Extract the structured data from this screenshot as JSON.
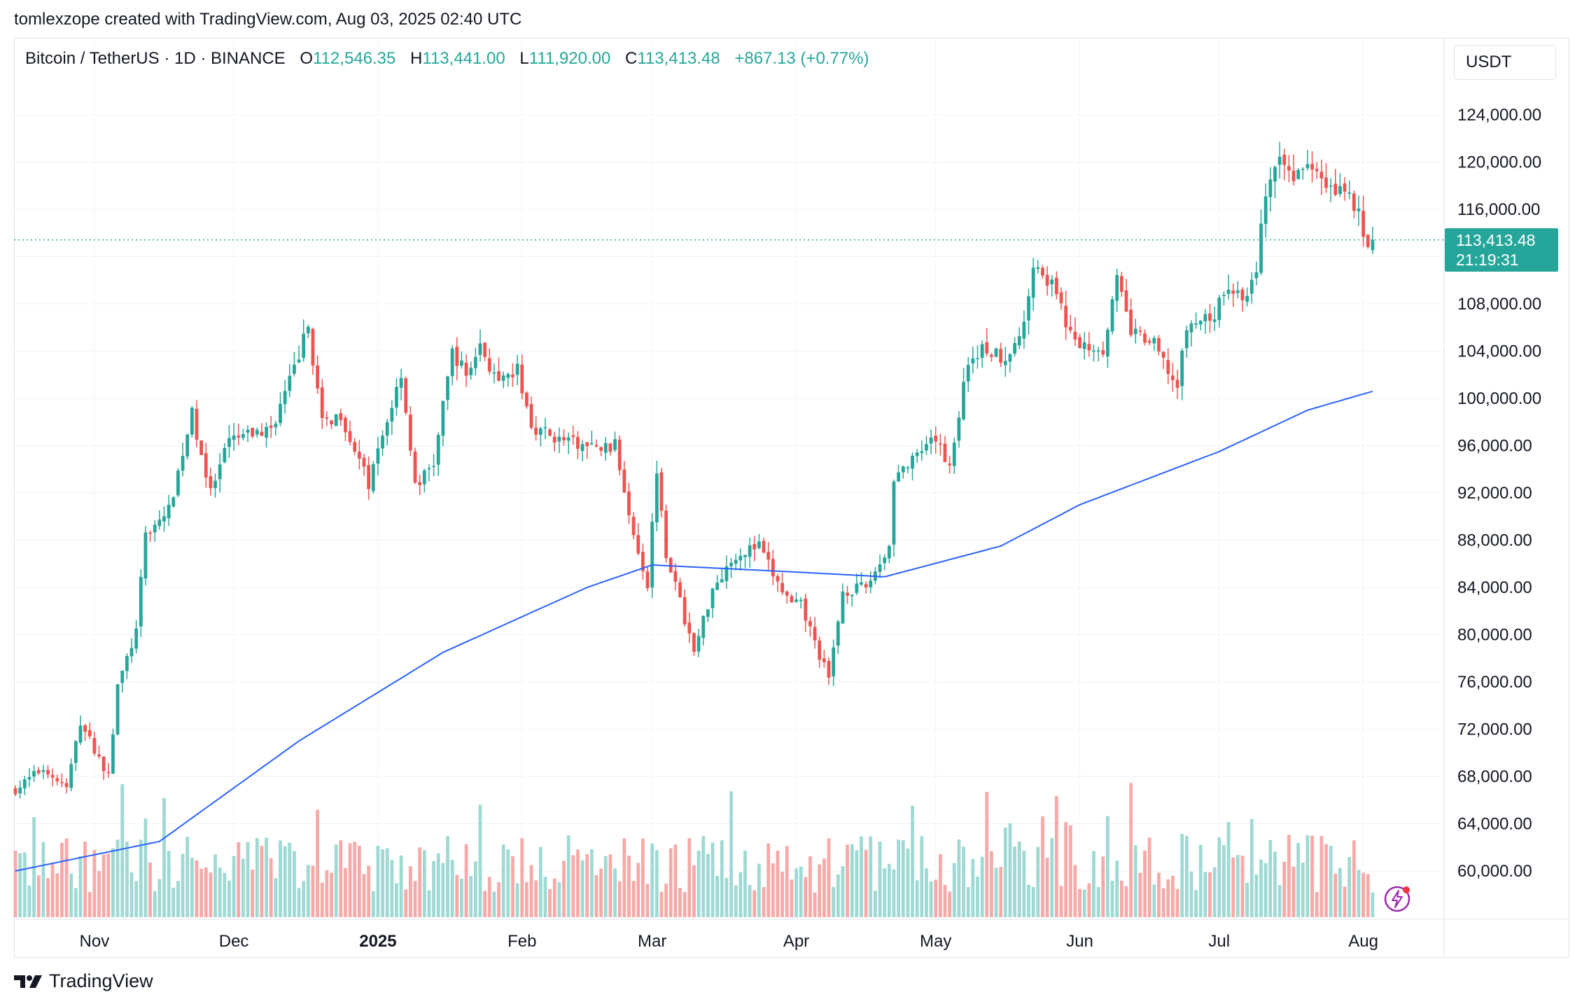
{
  "caption": "tomlexzope created with TradingView.com, Aug 03, 2025 02:40 UTC",
  "legend": {
    "symbol": "Bitcoin / TetherUS · 1D · BINANCE",
    "o_key": "O",
    "o_val": "112,546.35",
    "h_key": "H",
    "h_val": "113,441.00",
    "l_key": "L",
    "l_val": "111,920.00",
    "c_key": "C",
    "c_val": "113,413.48",
    "change": "+867.13 (+0.77%)"
  },
  "currency": "USDT",
  "last_price": {
    "price": "113,413.48",
    "countdown": "21:19:31"
  },
  "brand": "TradingView",
  "colors": {
    "up": "#26a69a",
    "down": "#ef5350",
    "ma": "#2962ff",
    "vol_up": "#9fd9d3",
    "vol_down": "#f7a9a7"
  },
  "icons": {
    "flash": "flash-icon",
    "logo": "tradingview-logo-icon"
  },
  "chart_data": {
    "type": "candlestick",
    "price_axis": {
      "labels": [
        "124,000.00",
        "120,000.00",
        "116,000.00",
        "108,000.00",
        "104,000.00",
        "100,000.00",
        "96,000.00",
        "92,000.00",
        "88,000.00",
        "84,000.00",
        "80,000.00",
        "76,000.00",
        "72,000.00",
        "68,000.00",
        "64,000.00",
        "60,000.00"
      ],
      "values": [
        124000,
        120000,
        116000,
        108000,
        104000,
        100000,
        96000,
        92000,
        88000,
        84000,
        80000,
        76000,
        72000,
        68000,
        64000,
        60000
      ],
      "range": [
        57000,
        126000
      ]
    },
    "time_axis": {
      "labels": [
        "Nov",
        "Dec",
        "2025",
        "Feb",
        "Mar",
        "Apr",
        "May",
        "Jun",
        "Jul",
        "Aug"
      ],
      "bold": [
        false,
        false,
        true,
        false,
        false,
        false,
        false,
        false,
        false,
        false
      ]
    },
    "series": [
      {
        "name": "BTCUSDT Daily",
        "anchors": [
          [
            "2024-10-15",
            66900
          ],
          [
            "2024-10-21",
            68700
          ],
          [
            "2024-10-26",
            67000
          ],
          [
            "2024-10-29",
            72600
          ],
          [
            "2024-11-04",
            68000
          ],
          [
            "2024-11-06",
            75600
          ],
          [
            "2024-11-10",
            80300
          ],
          [
            "2024-11-12",
            88500
          ],
          [
            "2024-11-17",
            90500
          ],
          [
            "2024-11-22",
            98700
          ],
          [
            "2024-11-26",
            91900
          ],
          [
            "2024-11-30",
            96400
          ],
          [
            "2024-12-05",
            97000
          ],
          [
            "2024-12-09",
            97400
          ],
          [
            "2024-12-13",
            101400
          ],
          [
            "2024-12-17",
            106100
          ],
          [
            "2024-12-20",
            97800
          ],
          [
            "2024-12-24",
            98700
          ],
          [
            "2024-12-30",
            92700
          ],
          [
            "2025-01-06",
            102200
          ],
          [
            "2025-01-09",
            92500
          ],
          [
            "2025-01-13",
            94500
          ],
          [
            "2025-01-17",
            104000
          ],
          [
            "2025-01-20",
            102000
          ],
          [
            "2025-01-23",
            104500
          ],
          [
            "2025-01-27",
            101000
          ],
          [
            "2025-01-31",
            102400
          ],
          [
            "2025-02-03",
            97700
          ],
          [
            "2025-02-09",
            96500
          ],
          [
            "2025-02-17",
            95700
          ],
          [
            "2025-02-21",
            96000
          ],
          [
            "2025-02-25",
            88700
          ],
          [
            "2025-02-28",
            84300
          ],
          [
            "2025-03-02",
            94200
          ],
          [
            "2025-03-04",
            87000
          ],
          [
            "2025-03-10",
            78500
          ],
          [
            "2025-03-14",
            84000
          ],
          [
            "2025-03-19",
            86800
          ],
          [
            "2025-03-24",
            87500
          ],
          [
            "2025-03-28",
            84300
          ],
          [
            "2025-03-31",
            82500
          ],
          [
            "2025-04-02",
            82500
          ],
          [
            "2025-04-06",
            78300
          ],
          [
            "2025-04-08",
            76200
          ],
          [
            "2025-04-11",
            83700
          ],
          [
            "2025-04-16",
            84000
          ],
          [
            "2025-04-21",
            87500
          ],
          [
            "2025-04-22",
            93400
          ],
          [
            "2025-04-26",
            94600
          ],
          [
            "2025-05-01",
            96500
          ],
          [
            "2025-05-04",
            94300
          ],
          [
            "2025-05-08",
            103200
          ],
          [
            "2025-05-11",
            104200
          ],
          [
            "2025-05-16",
            103500
          ],
          [
            "2025-05-20",
            106000
          ],
          [
            "2025-05-22",
            111700
          ],
          [
            "2025-05-26",
            109500
          ],
          [
            "2025-05-31",
            104600
          ],
          [
            "2025-06-06",
            104300
          ],
          [
            "2025-06-09",
            110000
          ],
          [
            "2025-06-12",
            105700
          ],
          [
            "2025-06-17",
            104500
          ],
          [
            "2025-06-22",
            100900
          ],
          [
            "2025-06-24",
            106000
          ],
          [
            "2025-06-30",
            107100
          ],
          [
            "2025-07-03",
            109600
          ],
          [
            "2025-07-07",
            108300
          ],
          [
            "2025-07-09",
            111200
          ],
          [
            "2025-07-11",
            117500
          ],
          [
            "2025-07-14",
            119800
          ],
          [
            "2025-07-17",
            119000
          ],
          [
            "2025-07-22",
            119900
          ],
          [
            "2025-07-25",
            117600
          ],
          [
            "2025-07-28",
            118000
          ],
          [
            "2025-07-31",
            115700
          ],
          [
            "2025-08-01",
            113300
          ],
          [
            "2025-08-02",
            112550
          ],
          [
            "2025-08-03",
            113413
          ]
        ]
      },
      {
        "name": "MA",
        "anchors": [
          [
            "2024-10-15",
            60000
          ],
          [
            "2024-11-15",
            62500
          ],
          [
            "2024-12-15",
            71000
          ],
          [
            "2025-01-15",
            78500
          ],
          [
            "2025-02-15",
            84000
          ],
          [
            "2025-03-01",
            85900
          ],
          [
            "2025-04-01",
            85300
          ],
          [
            "2025-04-20",
            84900
          ],
          [
            "2025-05-15",
            87500
          ],
          [
            "2025-06-01",
            91000
          ],
          [
            "2025-07-01",
            95500
          ],
          [
            "2025-07-20",
            99000
          ],
          [
            "2025-08-03",
            100600
          ]
        ]
      }
    ],
    "x_range": [
      "2024-10-15",
      "2025-08-15"
    ],
    "volume_range": [
      0,
      75000
    ],
    "grid": true
  }
}
